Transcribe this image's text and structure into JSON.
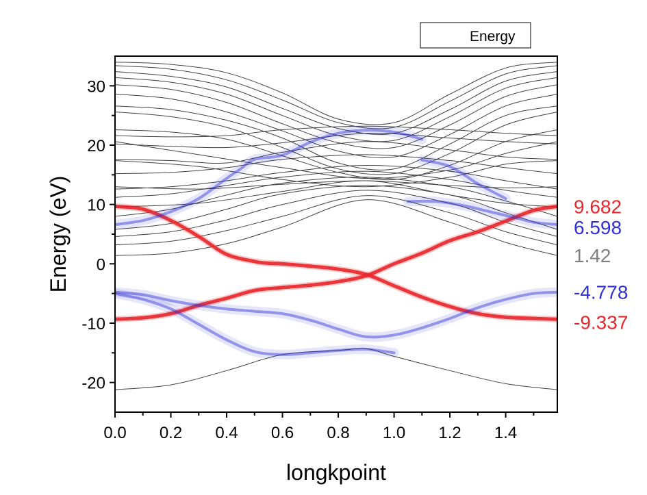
{
  "chart_data": {
    "type": "line",
    "title": "",
    "xlabel": "longkpoint",
    "ylabel": "Energy (eV)",
    "xlim": [
      0,
      1.585
    ],
    "ylim": [
      -25,
      35
    ],
    "xticks": [
      "0.0",
      "0.2",
      "0.4",
      "0.6",
      "0.8",
      "1.0",
      "1.2",
      "1.4"
    ],
    "xtick_values": [
      0,
      0.2,
      0.4,
      0.6,
      0.8,
      1.0,
      1.2,
      1.4
    ],
    "yticks": [
      "-20",
      "-10",
      "0",
      "10",
      "20",
      "30"
    ],
    "ytick_values": [
      -20,
      -10,
      0,
      10,
      20,
      30
    ],
    "grid": false,
    "legend": {
      "position": "top-right",
      "entries": [
        {
          "label": "Energy",
          "color": "#000000"
        }
      ]
    },
    "colors": {
      "red": "#e8262b",
      "blue": "#2f2fd6",
      "gray": "#808080",
      "band": "#404040"
    },
    "side_labels": [
      {
        "text": "9.682",
        "y": 9.682,
        "color": "#e8262b"
      },
      {
        "text": "6.598",
        "y": 6.598,
        "color": "#2f2fd6"
      },
      {
        "text": "1.42",
        "y": 1.42,
        "color": "#808080"
      },
      {
        "text": "-4.778",
        "y": -4.778,
        "color": "#2f2fd6"
      },
      {
        "text": "-9.337",
        "y": -9.337,
        "color": "#e8262b"
      }
    ],
    "series": [
      {
        "color": "#e8262b",
        "highlight": true,
        "x": [
          0,
          0.1,
          0.2,
          0.3,
          0.4,
          0.5,
          0.55,
          0.6,
          0.7,
          0.8,
          0.9,
          1.0,
          1.1,
          1.2,
          1.3,
          1.4,
          1.5,
          1.585
        ],
        "y": [
          9.68,
          9.2,
          7.3,
          4.6,
          1.6,
          0.4,
          0.1,
          0,
          -0.4,
          -0.9,
          -1.8,
          -3.7,
          -5.6,
          -7.2,
          -8.4,
          -9.0,
          -9.2,
          -9.34
        ]
      },
      {
        "color": "#e8262b",
        "highlight": true,
        "x": [
          0,
          0.1,
          0.2,
          0.3,
          0.4,
          0.5,
          0.6,
          0.7,
          0.8,
          0.9,
          1.0,
          1.1,
          1.2,
          1.3,
          1.4,
          1.5,
          1.585
        ],
        "y": [
          -9.34,
          -9.1,
          -8.4,
          -7.0,
          -5.8,
          -4.5,
          -4.0,
          -3.6,
          -3.0,
          -2.0,
          0.0,
          1.8,
          3.9,
          5.4,
          7.2,
          9.0,
          9.68
        ]
      },
      {
        "color": "#2f2fd6",
        "highlight": true,
        "x": [
          0,
          0.1,
          0.2,
          0.3,
          0.4,
          0.5,
          0.6,
          0.7,
          0.8,
          0.9,
          1.0,
          1.1,
          1.2,
          1.3,
          1.4,
          1.5,
          1.585
        ],
        "y": [
          -4.78,
          -5.2,
          -6.2,
          -7.0,
          -7.6,
          -8.0,
          -8.4,
          -9.5,
          -11.0,
          -12.3,
          -12.0,
          -10.8,
          -9.2,
          -7.4,
          -6.0,
          -5.0,
          -4.78
        ]
      },
      {
        "color": "#2f2fd6",
        "highlight": true,
        "x": [
          0,
          0.1,
          0.2,
          0.3,
          0.4,
          0.45,
          0.5,
          0.6,
          0.7,
          0.8,
          0.9,
          1.0,
          1.1
        ],
        "y": [
          6.6,
          7.3,
          8.8,
          11.0,
          14.4,
          16.0,
          17.6,
          18.3,
          20.5,
          22.0,
          22.5,
          22.2,
          21.0
        ]
      },
      {
        "color": "#2f2fd6",
        "highlight": true,
        "x": [
          1.05,
          1.15,
          1.25,
          1.35,
          1.45,
          1.5,
          1.585
        ],
        "y": [
          10.5,
          10.5,
          9.8,
          8.7,
          7.6,
          7.0,
          6.6
        ]
      },
      {
        "color": "#2f2fd6",
        "highlight": true,
        "x": [
          1.1,
          1.2,
          1.3,
          1.4
        ],
        "y": [
          17.5,
          16.4,
          13.5,
          11.0
        ]
      },
      {
        "color": "#2f2fd6",
        "highlight": true,
        "x": [
          0,
          0.1,
          0.2,
          0.3,
          0.4,
          0.5,
          0.6,
          0.7,
          0.8,
          0.9,
          1.0
        ],
        "y": [
          -5.0,
          -6.0,
          -7.6,
          -10.2,
          -12.8,
          -14.8,
          -15.3,
          -15.0,
          -14.6,
          -14.4,
          -15.0
        ]
      },
      {
        "color": "#404040",
        "x": [
          0,
          0.2,
          0.4,
          0.6,
          0.8,
          0.9,
          1.0,
          1.2,
          1.4,
          1.585
        ],
        "y": [
          -21.2,
          -20.4,
          -18.0,
          -15.3,
          -14.6,
          -14.3,
          -15.6,
          -18.0,
          -20.2,
          -21.2
        ]
      },
      {
        "color": "#404040",
        "x": [
          0,
          0.2,
          0.4,
          0.6,
          0.9,
          1.2,
          1.4,
          1.585
        ],
        "y": [
          1.4,
          1.8,
          3.4,
          6.2,
          10.8,
          7.0,
          3.6,
          1.4
        ]
      },
      {
        "color": "#404040",
        "x": [
          0,
          0.2,
          0.4,
          0.6,
          0.9,
          1.2,
          1.4,
          1.585
        ],
        "y": [
          3.2,
          3.8,
          5.6,
          8.0,
          11.5,
          8.6,
          5.4,
          3.2
        ]
      },
      {
        "color": "#404040",
        "x": [
          0,
          0.2,
          0.4,
          0.6,
          0.9,
          1.2,
          1.4,
          1.585
        ],
        "y": [
          4.6,
          5.4,
          7.4,
          10.0,
          12.4,
          10.2,
          7.0,
          4.6
        ]
      },
      {
        "color": "#404040",
        "x": [
          0,
          0.2,
          0.4,
          0.6,
          0.9,
          1.2,
          1.4,
          1.585
        ],
        "y": [
          5.8,
          6.8,
          9.2,
          11.8,
          13.2,
          11.6,
          8.6,
          5.8
        ]
      },
      {
        "color": "#404040",
        "x": [
          0,
          0.2,
          0.4,
          0.6,
          0.9,
          1.2,
          1.4,
          1.585
        ],
        "y": [
          8.0,
          9.2,
          11.6,
          13.6,
          14.6,
          13.0,
          10.6,
          8.0
        ]
      },
      {
        "color": "#404040",
        "x": [
          0,
          0.2,
          0.4,
          0.6,
          0.9,
          1.2,
          1.4,
          1.585
        ],
        "y": [
          11.2,
          11.8,
          13.2,
          14.6,
          15.6,
          14.2,
          12.4,
          11.2
        ]
      },
      {
        "color": "#404040",
        "x": [
          0,
          0.2,
          0.4,
          0.6,
          0.9,
          1.2,
          1.4,
          1.585
        ],
        "y": [
          12.6,
          13.0,
          14.0,
          15.4,
          16.6,
          15.6,
          14.0,
          12.6
        ]
      },
      {
        "color": "#404040",
        "x": [
          0,
          0.2,
          0.4,
          0.6,
          0.9,
          1.2,
          1.4,
          1.585
        ],
        "y": [
          15.2,
          15.4,
          16.2,
          17.6,
          18.4,
          17.4,
          16.2,
          15.2
        ]
      },
      {
        "color": "#404040",
        "x": [
          0,
          0.2,
          0.4,
          0.6,
          0.9,
          1.2,
          1.4,
          1.585
        ],
        "y": [
          17.6,
          17.4,
          17.0,
          18.8,
          20.6,
          19.2,
          18.0,
          17.6
        ]
      },
      {
        "color": "#404040",
        "x": [
          0,
          0.2,
          0.4,
          0.6,
          0.9,
          1.2,
          1.4,
          1.585
        ],
        "y": [
          20.2,
          19.8,
          19.6,
          20.4,
          22.0,
          21.2,
          20.6,
          20.2
        ]
      },
      {
        "color": "#404040",
        "x": [
          0,
          0.2,
          0.4,
          0.6,
          0.9,
          1.2,
          1.4,
          1.585
        ],
        "y": [
          21.6,
          21.4,
          21.6,
          22.6,
          23.2,
          22.6,
          22.0,
          21.6
        ]
      },
      {
        "color": "#404040",
        "x": [
          0,
          0.2,
          0.4,
          0.6,
          0.8,
          1.0,
          1.2,
          1.4,
          1.585
        ],
        "y": [
          22.6,
          22.2,
          21.0,
          18.2,
          15.4,
          14.2,
          16.6,
          20.6,
          22.6
        ]
      },
      {
        "color": "#404040",
        "x": [
          0,
          0.2,
          0.4,
          0.6,
          0.8,
          1.0,
          1.2,
          1.4,
          1.585
        ],
        "y": [
          25.6,
          24.8,
          23.0,
          19.6,
          16.0,
          15.2,
          18.6,
          23.4,
          25.6
        ]
      },
      {
        "color": "#404040",
        "x": [
          0,
          0.2,
          0.4,
          0.6,
          0.8,
          1.0,
          1.2,
          1.4,
          1.585
        ],
        "y": [
          26.6,
          26.0,
          24.2,
          21.2,
          17.0,
          16.0,
          20.2,
          25.0,
          26.6
        ]
      },
      {
        "color": "#404040",
        "x": [
          0,
          0.2,
          0.4,
          0.6,
          0.8,
          1.0,
          1.2,
          1.4,
          1.585
        ],
        "y": [
          28.6,
          27.8,
          25.6,
          22.4,
          19.0,
          18.0,
          21.8,
          26.6,
          28.6
        ]
      },
      {
        "color": "#404040",
        "x": [
          0,
          0.2,
          0.4,
          0.6,
          0.8,
          1.0,
          1.2,
          1.4,
          1.585
        ],
        "y": [
          30.2,
          29.4,
          27.2,
          23.6,
          20.4,
          19.6,
          23.4,
          28.2,
          30.2
        ]
      },
      {
        "color": "#404040",
        "x": [
          0,
          0.2,
          0.4,
          0.6,
          0.8,
          1.0,
          1.2,
          1.4,
          1.585
        ],
        "y": [
          31.4,
          30.6,
          28.6,
          25.0,
          21.6,
          20.8,
          24.8,
          29.6,
          31.4
        ]
      },
      {
        "color": "#404040",
        "x": [
          0,
          0.2,
          0.4,
          0.6,
          0.8,
          1.0,
          1.2,
          1.4,
          1.585
        ],
        "y": [
          32.4,
          31.6,
          29.8,
          26.2,
          22.8,
          22.0,
          26.0,
          30.8,
          32.4
        ]
      },
      {
        "color": "#404040",
        "x": [
          0,
          0.2,
          0.4,
          0.6,
          0.8,
          1.0,
          1.2,
          1.4,
          1.585
        ],
        "y": [
          33.4,
          32.8,
          31.0,
          27.6,
          23.8,
          23.0,
          27.4,
          32.0,
          33.4
        ]
      },
      {
        "color": "#404040",
        "x": [
          0,
          0.2,
          0.4,
          0.6,
          0.8,
          1.0,
          1.2,
          1.4,
          1.585
        ],
        "y": [
          34.0,
          33.6,
          32.2,
          28.8,
          24.4,
          23.8,
          28.6,
          33.0,
          34.0
        ]
      },
      {
        "color": "#404040",
        "x": [
          0,
          0.3,
          0.6,
          0.9,
          1.2,
          1.4,
          1.585
        ],
        "y": [
          17.4,
          16.4,
          14.2,
          13.0,
          14.6,
          16.8,
          17.4
        ]
      },
      {
        "color": "#404040",
        "x": [
          0,
          0.3,
          0.6,
          0.9,
          1.2,
          1.4,
          1.585
        ],
        "y": [
          13.0,
          12.6,
          13.4,
          14.0,
          13.2,
          12.8,
          13.0
        ]
      },
      {
        "color": "#404040",
        "x": [
          0,
          0.3,
          0.6,
          0.9,
          1.2,
          1.4,
          1.585
        ],
        "y": [
          9.6,
          10.2,
          12.2,
          14.0,
          11.6,
          10.2,
          9.6
        ]
      },
      {
        "color": "#404040",
        "x": [
          0,
          0.3,
          0.6,
          0.9,
          1.2,
          1.4,
          1.585
        ],
        "y": [
          20.6,
          18.4,
          16.2,
          14.4,
          15.8,
          18.6,
          20.6
        ]
      }
    ]
  }
}
